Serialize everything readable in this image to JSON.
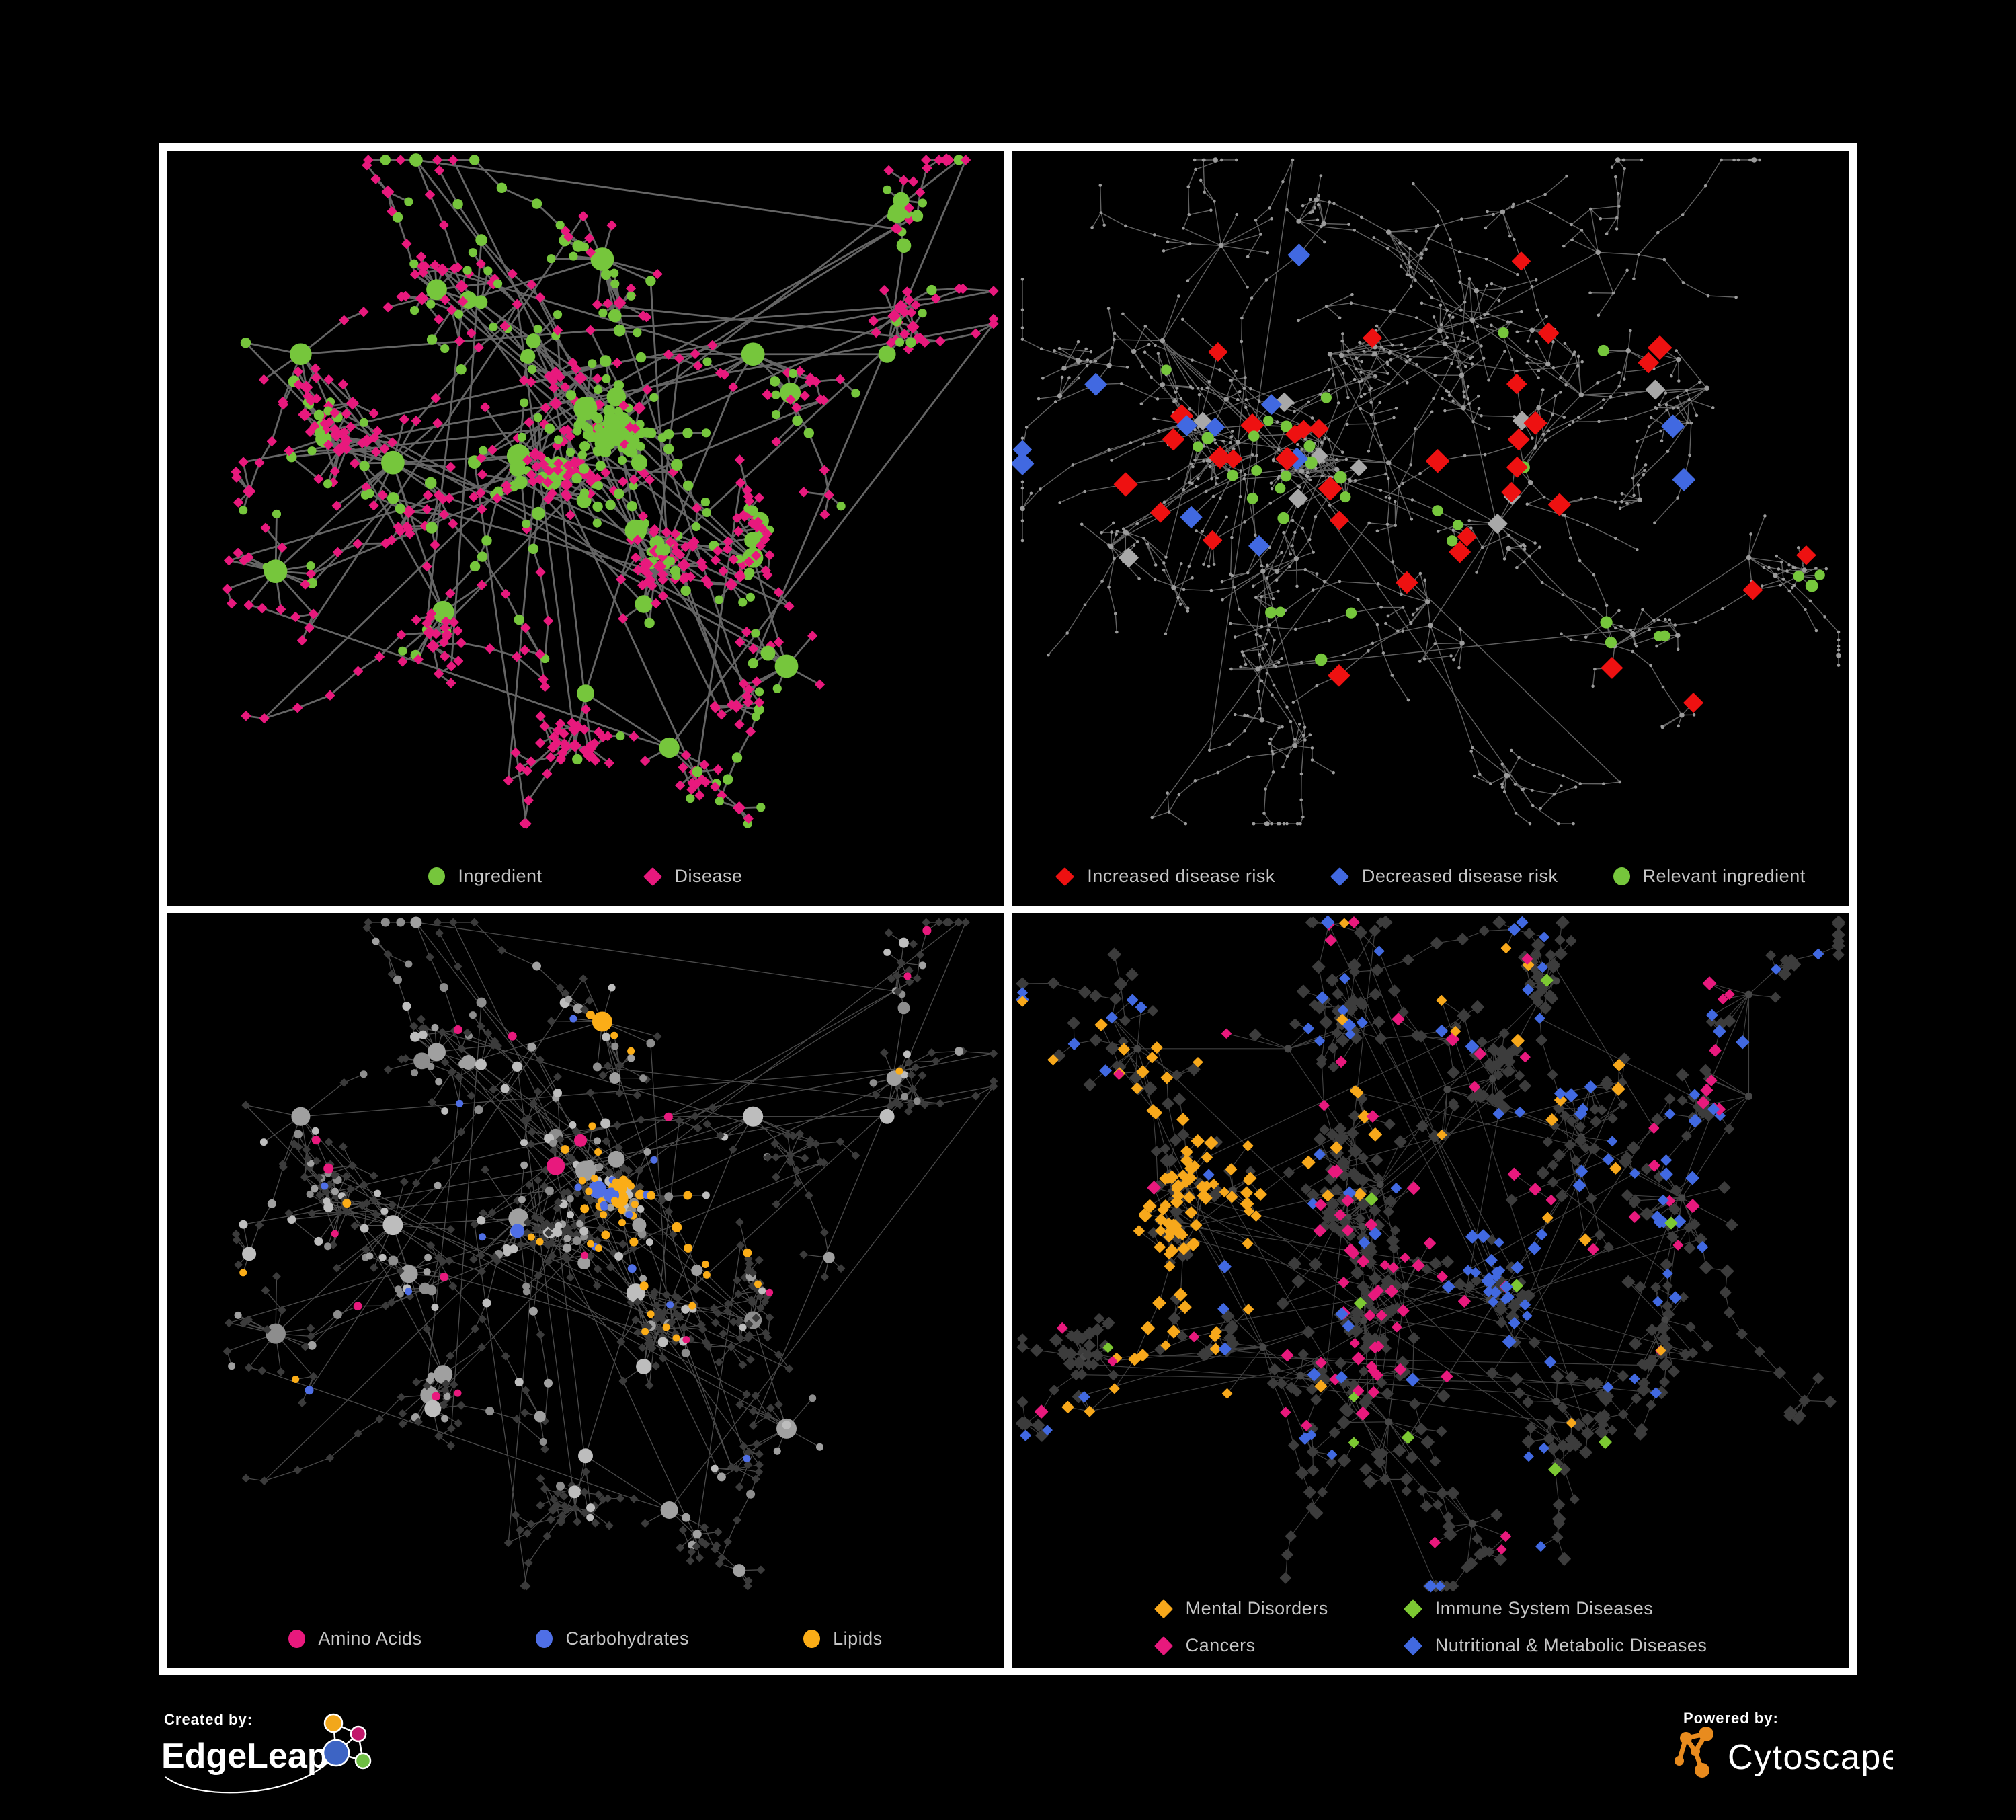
{
  "figure": {
    "background": "#000000",
    "frame_color": "#ffffff",
    "legend_text_color": "#c6c6c6"
  },
  "branding": {
    "created_by_label": "Created by:",
    "created_by_name": "EdgeLeap",
    "powered_by_label": "Powered by:",
    "powered_by_name": "Cytoscape",
    "edgeleap_glyph": {
      "amber": "#F2A71B",
      "magenta": "#C2186B",
      "blue": "#3D64C4",
      "green": "#6FBE44"
    },
    "cytoscape_color": "#E88B1E"
  },
  "panels": [
    {
      "name": "ingredient-disease",
      "legend": [
        {
          "label": "Ingredient",
          "shape": "circle",
          "color": "#76C63C"
        },
        {
          "label": "Disease",
          "shape": "diamond",
          "color": "#E8197D"
        }
      ],
      "network": {
        "seed": 777,
        "mode": "two-class",
        "hub_bias": 3,
        "tendril": 0.06,
        "extra_edges": 60,
        "edge": {
          "color": "#6E6E6E",
          "width": 2.8,
          "opacity": 0.92
        },
        "palette": {
          "circle": "#76C63C",
          "diamond": "#E8197D"
        },
        "clusters": [
          [
            0.42,
            0.45,
            115,
            0.08,
            {
              "c": 0.42
            }
          ],
          [
            0.5,
            0.38,
            65,
            0.05,
            {
              "c": 0.82
            }
          ],
          [
            0.27,
            0.46,
            70,
            0.075,
            {
              "c": 0.38
            }
          ],
          [
            0.56,
            0.56,
            45,
            0.055,
            {
              "c": 0.14
            }
          ],
          [
            0.5,
            0.8,
            40,
            0.055,
            {
              "c": 0.12
            }
          ],
          [
            0.36,
            0.22,
            40,
            0.075,
            {
              "c": 0.35
            }
          ],
          [
            0.52,
            0.16,
            30,
            0.065,
            {
              "c": 0.45
            }
          ],
          [
            0.7,
            0.3,
            30,
            0.065,
            {
              "c": 0.2
            }
          ],
          [
            0.86,
            0.3,
            28,
            0.06,
            {
              "c": 0.2
            }
          ],
          [
            0.7,
            0.6,
            26,
            0.055,
            {
              "c": 0.2
            }
          ],
          [
            0.74,
            0.76,
            26,
            0.055,
            {
              "c": 0.2
            }
          ],
          [
            0.16,
            0.3,
            24,
            0.065,
            {
              "c": 0.3
            }
          ],
          [
            0.13,
            0.62,
            22,
            0.06,
            {
              "c": 0.25
            }
          ],
          [
            0.33,
            0.68,
            28,
            0.06,
            {
              "c": 0.2
            }
          ],
          [
            0.6,
            0.88,
            18,
            0.05,
            {
              "c": 0.25
            }
          ],
          [
            0.88,
            0.14,
            16,
            0.05,
            {
              "c": 0.25
            }
          ]
        ]
      }
    },
    {
      "name": "disease-risk",
      "legend": [
        {
          "label": "Increased disease risk",
          "shape": "diamond",
          "color": "#EE1111"
        },
        {
          "label": "Decreased disease risk",
          "shape": "diamond",
          "color": "#4169E1"
        },
        {
          "label": "Relevant ingredient",
          "shape": "circle",
          "color": "#76C63C"
        }
      ],
      "network": {
        "seed": 4242,
        "mode": "highlight",
        "hub_bias": 1,
        "tendril": 0.22,
        "extra_edges": 14,
        "edge": {
          "color": "#8C8C8C",
          "width": 1.4,
          "opacity": 0.7
        },
        "palette": {
          "dot": "#9B9B9B",
          "red": "#EE1111",
          "blue": "#4169E1",
          "silver": "#A8A8A8",
          "green": "#76C63C"
        },
        "clusters": [
          [
            0.45,
            0.46,
            55,
            0.075,
            {
              "r": 0.1,
              "b": 0.02,
              "s": 0.03,
              "g": 0.08
            }
          ],
          [
            0.27,
            0.43,
            45,
            0.07,
            {
              "r": 0.07,
              "b": 0.09,
              "s": 0.03,
              "g": 0.08
            }
          ],
          [
            0.58,
            0.55,
            30,
            0.06,
            {
              "r": 0.1,
              "b": 0,
              "s": 0.04,
              "g": 0.08
            }
          ],
          [
            0.38,
            0.3,
            30,
            0.07,
            {
              "r": 0.03,
              "b": 0,
              "s": 0,
              "g": 0.02
            }
          ],
          [
            0.55,
            0.25,
            30,
            0.07,
            {
              "r": 0.02,
              "b": 0,
              "s": 0,
              "g": 0.02
            }
          ],
          [
            0.68,
            0.36,
            24,
            0.06,
            {
              "r": 0.06,
              "b": 0,
              "s": 0,
              "g": 0.03
            }
          ],
          [
            0.3,
            0.62,
            26,
            0.06,
            {
              "r": 0,
              "b": 0,
              "s": 0.03,
              "g": 0.02
            }
          ],
          [
            0.5,
            0.7,
            24,
            0.06,
            {
              "r": 0.04,
              "b": 0,
              "s": 0,
              "g": 0.04
            }
          ],
          [
            0.18,
            0.28,
            22,
            0.065,
            {}
          ],
          [
            0.15,
            0.55,
            20,
            0.06,
            {}
          ],
          [
            0.7,
            0.15,
            20,
            0.06,
            {}
          ],
          [
            0.83,
            0.35,
            22,
            0.06,
            {
              "b": 0.08,
              "g": 0.04
            }
          ],
          [
            0.72,
            0.73,
            22,
            0.055,
            {
              "r": 0.08,
              "g": 0.1
            }
          ],
          [
            0.35,
            0.85,
            18,
            0.055,
            {}
          ],
          [
            0.55,
            0.88,
            16,
            0.05,
            {}
          ],
          [
            0.88,
            0.6,
            14,
            0.05,
            {}
          ],
          [
            0.25,
            0.14,
            18,
            0.06,
            {
              "r": 0.05
            }
          ],
          [
            0.45,
            0.12,
            16,
            0.055,
            {}
          ]
        ]
      }
    },
    {
      "name": "nutrient-classes",
      "legend": [
        {
          "label": "Amino Acids",
          "shape": "circle",
          "color": "#E8197D"
        },
        {
          "label": "Carbohydrates",
          "shape": "circle",
          "color": "#4F6FE6"
        },
        {
          "label": "Lipids",
          "shape": "circle",
          "color": "#FBAD17"
        }
      ],
      "network": {
        "seed": 777,
        "mode": "class-circles",
        "hub_bias": 3,
        "tendril": 0.06,
        "extra_edges": 60,
        "edge": {
          "color": "#A6A6A6",
          "width": 1.3,
          "opacity": 0.45
        },
        "palette": {
          "diamond": "#3B3B3B",
          "grays": [
            "#8D8D8D",
            "#A0A0A0",
            "#BDBDBD"
          ],
          "o": "#FBAD17",
          "p": "#E8197D",
          "b": "#4F6FE6"
        },
        "clusters": [
          [
            0.42,
            0.45,
            115,
            0.08,
            {
              "c": 0.42,
              "o": 0.12,
              "p": 0.04,
              "b": 0.04
            }
          ],
          [
            0.5,
            0.38,
            65,
            0.05,
            {
              "c": 0.82,
              "o": 0.52,
              "p": 0.02,
              "b": 0.14
            }
          ],
          [
            0.27,
            0.46,
            70,
            0.075,
            {
              "c": 0.38,
              "o": 0.06,
              "p": 0.07,
              "b": 0.02
            }
          ],
          [
            0.56,
            0.56,
            45,
            0.055,
            {
              "c": 0.14,
              "o": 0.3,
              "p": 0.03,
              "b": 0.05
            }
          ],
          [
            0.5,
            0.8,
            40,
            0.055,
            {
              "c": 0.12,
              "o": 0.06,
              "p": 0.05,
              "b": 0.02
            }
          ],
          [
            0.36,
            0.22,
            40,
            0.075,
            {
              "c": 0.35,
              "o": 0.1,
              "p": 0.06,
              "b": 0.03
            }
          ],
          [
            0.52,
            0.16,
            30,
            0.065,
            {
              "c": 0.45,
              "o": 0.28,
              "p": 0.04,
              "b": 0.06
            }
          ],
          [
            0.7,
            0.3,
            30,
            0.065,
            {
              "c": 0.2,
              "o": 0.08,
              "p": 0.08,
              "b": 0.02
            }
          ],
          [
            0.86,
            0.3,
            28,
            0.06,
            {
              "c": 0.2,
              "o": 0.06,
              "p": 0.1,
              "b": 0.02
            }
          ],
          [
            0.7,
            0.6,
            26,
            0.055,
            {
              "c": 0.2,
              "o": 0.18,
              "p": 0.06,
              "b": 0.05
            }
          ],
          [
            0.74,
            0.76,
            26,
            0.055,
            {
              "c": 0.2,
              "o": 0.05,
              "p": 0.12,
              "b": 0.02
            }
          ],
          [
            0.16,
            0.3,
            24,
            0.065,
            {
              "c": 0.3,
              "o": 0.06,
              "p": 0.08,
              "b": 0.04
            }
          ],
          [
            0.13,
            0.62,
            22,
            0.06,
            {
              "c": 0.25,
              "o": 0.06,
              "p": 0.08,
              "b": 0.02
            }
          ],
          [
            0.33,
            0.68,
            28,
            0.06,
            {
              "c": 0.2,
              "o": 0.1,
              "p": 0.08,
              "b": 0.02
            }
          ],
          [
            0.6,
            0.88,
            18,
            0.05,
            {
              "c": 0.25,
              "o": 0.06,
              "p": 0.06,
              "b": 0.02
            }
          ],
          [
            0.88,
            0.14,
            16,
            0.05,
            {
              "c": 0.25,
              "o": 0.06,
              "p": 0.1,
              "b": 0.02
            }
          ]
        ]
      }
    },
    {
      "name": "disease-categories",
      "legend": [
        {
          "label": "Mental Disorders",
          "shape": "diamond",
          "color": "#F7A81B"
        },
        {
          "label": "Immune System Diseases",
          "shape": "diamond",
          "color": "#7CC832"
        },
        {
          "label": "Cancers",
          "shape": "diamond",
          "color": "#E8197D"
        },
        {
          "label": "Nutritional & Metabolic Diseases",
          "shape": "diamond",
          "color": "#4169E1"
        }
      ],
      "network": {
        "seed": 9119,
        "mode": "class-diamonds",
        "hub_bias": 2,
        "tendril": 0.07,
        "extra_edges": 50,
        "edge": {
          "color": "#9A9A9A",
          "width": 1.15,
          "opacity": 0.42
        },
        "palette": {
          "base": "#3C3C3C",
          "hub": "#474747",
          "o": "#F7A81B",
          "p": "#E8197D",
          "b": "#4169E1",
          "g": "#7CC832"
        },
        "clusters": [
          [
            0.22,
            0.46,
            95,
            0.065,
            {
              "o": 0.6,
              "p": 0.02,
              "b": 0.02,
              "g": 0
            }
          ],
          [
            0.44,
            0.4,
            85,
            0.075,
            {
              "o": 0.05,
              "p": 0.14,
              "b": 0.06,
              "g": 0.03
            }
          ],
          [
            0.47,
            0.55,
            60,
            0.06,
            {
              "o": 0.02,
              "p": 0.3,
              "b": 0.05,
              "g": 0.02
            }
          ],
          [
            0.57,
            0.57,
            45,
            0.045,
            {
              "o": 0.02,
              "p": 0.04,
              "b": 0.45,
              "g": 0.02
            }
          ],
          [
            0.52,
            0.26,
            45,
            0.07,
            {
              "o": 0.04,
              "p": 0.1,
              "b": 0.1,
              "g": 0.02
            }
          ],
          [
            0.33,
            0.2,
            40,
            0.07,
            {
              "o": 0.06,
              "p": 0.04,
              "b": 0.14,
              "g": 0
            }
          ],
          [
            0.68,
            0.33,
            35,
            0.065,
            {
              "o": 0.02,
              "p": 0.04,
              "b": 0.18,
              "g": 0
            }
          ],
          [
            0.8,
            0.42,
            35,
            0.06,
            {
              "o": 0.02,
              "p": 0.04,
              "b": 0.22,
              "g": 0.02
            }
          ],
          [
            0.88,
            0.27,
            26,
            0.055,
            {
              "o": 0.02,
              "p": 0.25,
              "b": 0.12,
              "g": 0
            }
          ],
          [
            0.3,
            0.64,
            34,
            0.06,
            {
              "o": 0.1,
              "p": 0.1,
              "b": 0.1,
              "g": 0.02
            }
          ],
          [
            0.45,
            0.75,
            30,
            0.06,
            {
              "o": 0.02,
              "p": 0.06,
              "b": 0.06,
              "g": 0.02
            }
          ],
          [
            0.65,
            0.72,
            32,
            0.06,
            {
              "o": 0.02,
              "p": 0.04,
              "b": 0.06,
              "g": 0.03
            }
          ],
          [
            0.15,
            0.2,
            26,
            0.06,
            {
              "o": 0.06,
              "p": 0.04,
              "b": 0.16,
              "g": 0
            }
          ],
          [
            0.12,
            0.66,
            24,
            0.055,
            {
              "o": 0.06,
              "p": 0.06,
              "b": 0.06,
              "g": 0
            }
          ],
          [
            0.78,
            0.6,
            26,
            0.055,
            {
              "o": 0.02,
              "p": 0.06,
              "b": 0.1,
              "g": 0.02
            }
          ],
          [
            0.55,
            0.9,
            20,
            0.05,
            {
              "o": 0.02,
              "p": 0.12,
              "b": 0.08,
              "g": 0.02
            }
          ],
          [
            0.88,
            0.12,
            18,
            0.05,
            {
              "o": 0.02,
              "p": 0.06,
              "b": 0.2,
              "g": 0
            }
          ],
          [
            0.65,
            0.1,
            20,
            0.055,
            {
              "o": 0.04,
              "p": 0.06,
              "b": 0.14,
              "g": 0.02
            }
          ]
        ]
      }
    }
  ]
}
